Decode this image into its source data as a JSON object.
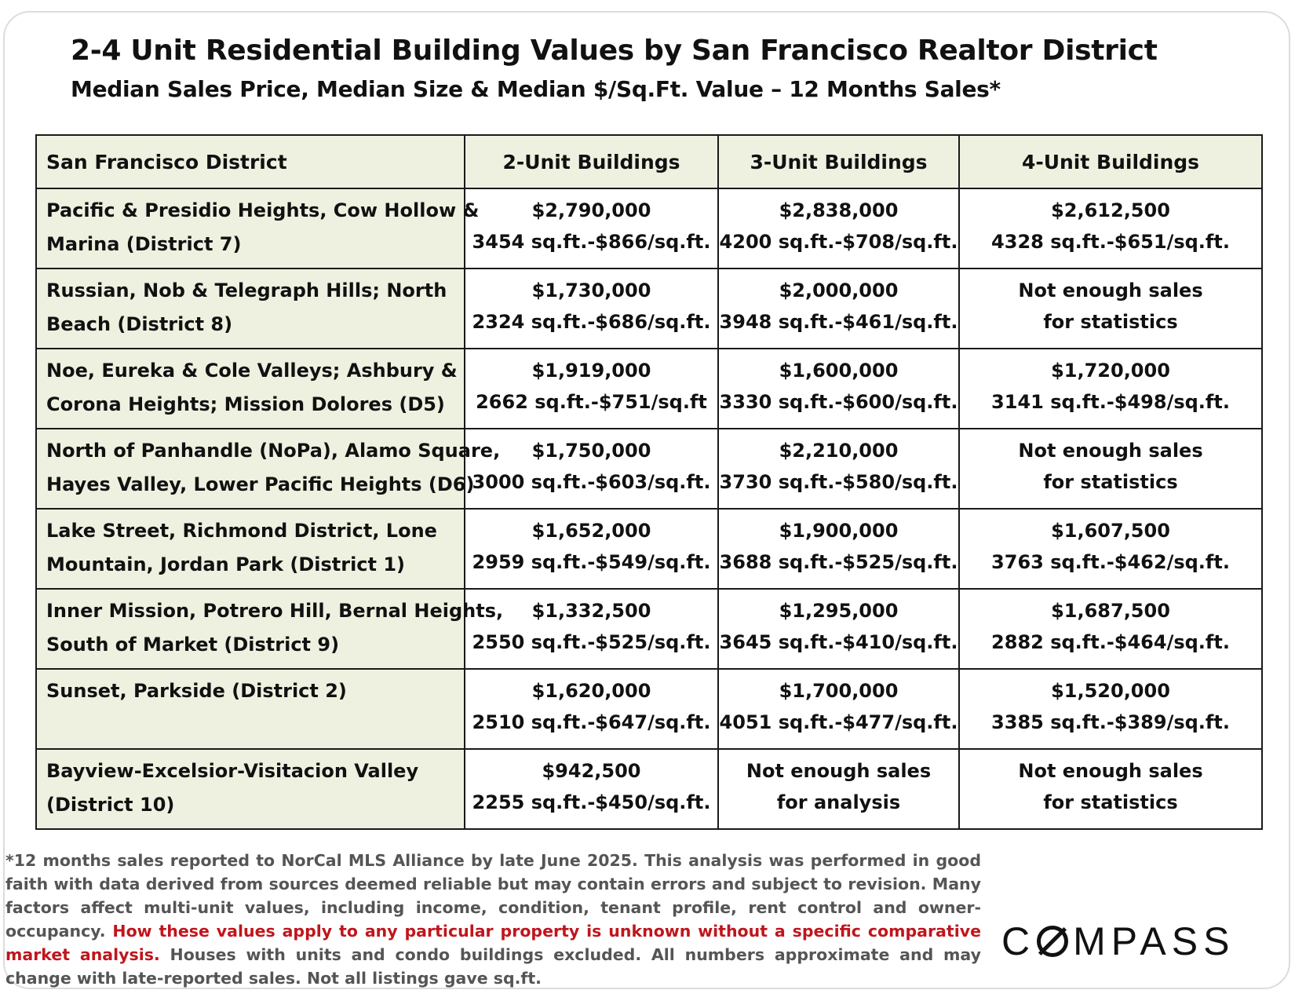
{
  "title": "2-4 Unit Residential Building Values by San Francisco Realtor District",
  "subtitle": "Median Sales Price, Median Size & Median $/Sq.Ft. Value – 12 Months Sales*",
  "table": {
    "headers": [
      "San Francisco District",
      "2-Unit Buildings",
      "3-Unit Buildings",
      "4-Unit Buildings"
    ],
    "rows": [
      {
        "district": [
          "Pacific & Presidio Heights, Cow Hollow &",
          "Marina (District 7)"
        ],
        "cells": [
          [
            "$2,790,000",
            "3454 sq.ft.-$866/sq.ft."
          ],
          [
            "$2,838,000",
            "4200 sq.ft.-$708/sq.ft."
          ],
          [
            "$2,612,500",
            "4328 sq.ft.-$651/sq.ft."
          ]
        ]
      },
      {
        "district": [
          "Russian, Nob & Telegraph Hills; North",
          "Beach (District 8)"
        ],
        "cells": [
          [
            "$1,730,000",
            "2324 sq.ft.-$686/sq.ft."
          ],
          [
            "$2,000,000",
            "3948 sq.ft.-$461/sq.ft."
          ],
          [
            "Not enough sales",
            "for statistics"
          ]
        ]
      },
      {
        "district": [
          "Noe, Eureka & Cole Valleys; Ashbury &",
          "Corona Heights; Mission Dolores (D5)"
        ],
        "cells": [
          [
            "$1,919,000",
            "2662 sq.ft.-$751/sq.ft"
          ],
          [
            "$1,600,000",
            "3330 sq.ft.-$600/sq.ft."
          ],
          [
            "$1,720,000",
            "3141 sq.ft.-$498/sq.ft."
          ]
        ]
      },
      {
        "district": [
          "North of Panhandle (NoPa), Alamo Square,",
          "Hayes Valley, Lower Pacific Heights (D6)"
        ],
        "cells": [
          [
            "$1,750,000",
            "3000 sq.ft.-$603/sq.ft."
          ],
          [
            "$2,210,000",
            "3730 sq.ft.-$580/sq.ft."
          ],
          [
            "Not enough sales",
            "for statistics"
          ]
        ]
      },
      {
        "district": [
          "Lake Street, Richmond District, Lone",
          "Mountain, Jordan Park (District 1)"
        ],
        "cells": [
          [
            "$1,652,000",
            "2959 sq.ft.-$549/sq.ft."
          ],
          [
            "$1,900,000",
            "3688 sq.ft.-$525/sq.ft."
          ],
          [
            "$1,607,500",
            "3763 sq.ft.-$462/sq.ft."
          ]
        ]
      },
      {
        "district": [
          "Inner Mission, Potrero Hill, Bernal Heights,",
          "South of Market (District 9)"
        ],
        "cells": [
          [
            "$1,332,500",
            "2550 sq.ft.-$525/sq.ft."
          ],
          [
            "$1,295,000",
            "3645 sq.ft.-$410/sq.ft."
          ],
          [
            "$1,687,500",
            "2882 sq.ft.-$464/sq.ft."
          ]
        ]
      },
      {
        "district": [
          "Sunset, Parkside (District 2)",
          ""
        ],
        "cells": [
          [
            "$1,620,000",
            "2510 sq.ft.-$647/sq.ft."
          ],
          [
            "$1,700,000",
            "4051 sq.ft.-$477/sq.ft."
          ],
          [
            "$1,520,000",
            "3385 sq.ft.-$389/sq.ft."
          ]
        ]
      },
      {
        "district": [
          "Bayview-Excelsior-Visitacion Valley",
          " (District 10)"
        ],
        "cells": [
          [
            "$942,500",
            "2255 sq.ft.-$450/sq.ft."
          ],
          [
            "Not enough sales",
            "for analysis"
          ],
          [
            "Not enough sales",
            "for statistics"
          ]
        ]
      }
    ]
  },
  "footnote": {
    "part1": "*12 months sales reported to NorCal MLS Alliance by late June 2025. This analysis was performed in good faith with data derived from sources deemed reliable but may contain errors and subject to revision. Many factors affect multi-unit values, including income, condition, tenant profile, rent control and owner-occupancy. ",
    "highlight": "How these values apply to any particular property is unknown without a specific comparative market analysis.",
    "part2": " Houses with units and condo buildings excluded. All numbers approximate and may change with late-reported sales. Not all listings gave sq.ft.",
    "highlight_color": "#c0151c"
  },
  "logo": {
    "text": "COMPASS",
    "icon": "compass-o-icon"
  },
  "colors": {
    "header_bg": "#eef1e0",
    "district_bg": "#eef1e0",
    "border": "#1a1a1a"
  }
}
